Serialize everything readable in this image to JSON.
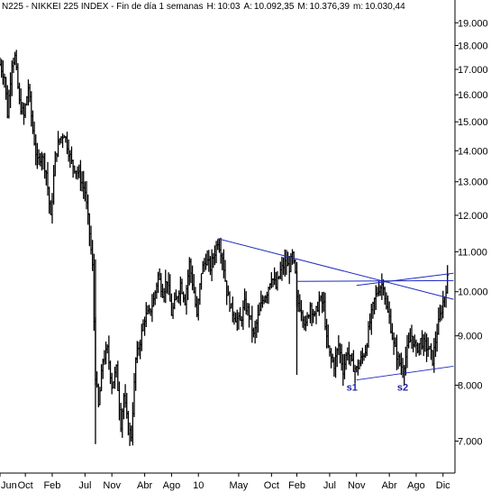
{
  "chart_data": {
    "type": "bar",
    "subtype": "ohlc-weekly",
    "title": "N225 - NIKKEI 225 INDEX - Fin de día 1 semanas",
    "stats": [
      {
        "label": "H:",
        "value": "10:03"
      },
      {
        "label": "A:",
        "value": "10.092,35"
      },
      {
        "label": "M:",
        "value": "10.376,39"
      },
      {
        "label": "m:",
        "value": "10.030,44"
      }
    ],
    "y_scale": "log",
    "ylim": [
      6500,
      19300
    ],
    "grid": false,
    "y_ticks": [
      {
        "value": 7000,
        "label": "7.000"
      },
      {
        "value": 8000,
        "label": "8.000"
      },
      {
        "value": 9000,
        "label": "9.000"
      },
      {
        "value": 10000,
        "label": "10.000"
      },
      {
        "value": 11000,
        "label": "11.000"
      },
      {
        "value": 12000,
        "label": "12.000"
      },
      {
        "value": 13000,
        "label": "13.000"
      },
      {
        "value": 14000,
        "label": "14.000"
      },
      {
        "value": 15000,
        "label": "15.000"
      },
      {
        "value": 16000,
        "label": "16.000"
      },
      {
        "value": 17000,
        "label": "17.000"
      },
      {
        "value": 18000,
        "label": "18.000"
      },
      {
        "value": 19000,
        "label": "19.000"
      }
    ],
    "x_ticks": [
      {
        "label": "Jun",
        "week": 0
      },
      {
        "label": "Oct",
        "week": 17
      },
      {
        "label": "Feb",
        "week": 35
      },
      {
        "label": "Jul",
        "week": 57
      },
      {
        "label": "Nov",
        "week": 75
      },
      {
        "label": "Abr",
        "week": 97
      },
      {
        "label": "Ago",
        "week": 115
      },
      {
        "label": "10",
        "week": 133
      },
      {
        "label": "May",
        "week": 160
      },
      {
        "label": "Oct",
        "week": 182
      },
      {
        "label": "Feb",
        "week": 199
      },
      {
        "label": "Jul",
        "week": 221
      },
      {
        "label": "Nov",
        "week": 239
      },
      {
        "label": "Abr",
        "week": 261
      },
      {
        "label": "Ago",
        "week": 279
      },
      {
        "label": "Dic",
        "week": 297
      }
    ],
    "price_path": [
      [
        0,
        17200
      ],
      [
        3,
        16700
      ],
      [
        5,
        15300
      ],
      [
        8,
        17300
      ],
      [
        10,
        17500
      ],
      [
        13,
        15700
      ],
      [
        16,
        15200
      ],
      [
        19,
        16300
      ],
      [
        22,
        14700
      ],
      [
        25,
        13600
      ],
      [
        28,
        13900
      ],
      [
        31,
        13300
      ],
      [
        34,
        11900
      ],
      [
        37,
        13800
      ],
      [
        40,
        14400
      ],
      [
        43,
        14600
      ],
      [
        45,
        14200
      ],
      [
        48,
        13600
      ],
      [
        51,
        13400
      ],
      [
        54,
        13100
      ],
      [
        57,
        12700
      ],
      [
        60,
        11500
      ],
      [
        62,
        10600
      ],
      [
        64,
        8200
      ],
      [
        66,
        7600
      ],
      [
        69,
        8500
      ],
      [
        72,
        8700
      ],
      [
        75,
        8000
      ],
      [
        78,
        8300
      ],
      [
        81,
        7300
      ],
      [
        83,
        7800
      ],
      [
        86,
        7200
      ],
      [
        88,
        7100
      ],
      [
        91,
        8500
      ],
      [
        94,
        8900
      ],
      [
        97,
        9400
      ],
      [
        100,
        9500
      ],
      [
        103,
        9800
      ],
      [
        106,
        10400
      ],
      [
        109,
        10000
      ],
      [
        112,
        10300
      ],
      [
        115,
        9500
      ],
      [
        118,
        9800
      ],
      [
        121,
        10200
      ],
      [
        124,
        9800
      ],
      [
        127,
        10700
      ],
      [
        130,
        10000
      ],
      [
        132,
        9400
      ],
      [
        135,
        10500
      ],
      [
        138,
        10800
      ],
      [
        141,
        10600
      ],
      [
        144,
        11000
      ],
      [
        146,
        11300
      ],
      [
        149,
        10900
      ],
      [
        152,
        10000
      ],
      [
        155,
        9600
      ],
      [
        158,
        9400
      ],
      [
        161,
        9300
      ],
      [
        164,
        9700
      ],
      [
        167,
        9500
      ],
      [
        170,
        9000
      ],
      [
        173,
        9400
      ],
      [
        176,
        9800
      ],
      [
        179,
        10000
      ],
      [
        182,
        10400
      ],
      [
        185,
        10100
      ],
      [
        188,
        10500
      ],
      [
        191,
        10700
      ],
      [
        194,
        10600
      ],
      [
        196,
        10900
      ],
      [
        198,
        10400
      ],
      [
        199,
        9800
      ],
      [
        202,
        9600
      ],
      [
        205,
        9200
      ],
      [
        208,
        9700
      ],
      [
        211,
        9400
      ],
      [
        214,
        9800
      ],
      [
        217,
        9700
      ],
      [
        219,
        8900
      ],
      [
        221,
        8600
      ],
      [
        224,
        8400
      ],
      [
        227,
        8800
      ],
      [
        230,
        8300
      ],
      [
        233,
        8700
      ],
      [
        236,
        8400
      ],
      [
        239,
        8300
      ],
      [
        242,
        8500
      ],
      [
        245,
        8700
      ],
      [
        248,
        9300
      ],
      [
        251,
        9800
      ],
      [
        254,
        10100
      ],
      [
        257,
        10200
      ],
      [
        259,
        9600
      ],
      [
        261,
        9400
      ],
      [
        264,
        8800
      ],
      [
        267,
        8500
      ],
      [
        270,
        8300
      ],
      [
        273,
        8700
      ],
      [
        276,
        9000
      ],
      [
        279,
        8700
      ],
      [
        282,
        8900
      ],
      [
        285,
        8800
      ],
      [
        288,
        8700
      ],
      [
        290,
        8500
      ],
      [
        293,
        9100
      ],
      [
        296,
        9600
      ],
      [
        298,
        9900
      ],
      [
        300,
        10300
      ]
    ],
    "spikes": [
      {
        "week": 64,
        "high": 10800,
        "low": 6950
      },
      {
        "week": 199,
        "high": 10500,
        "low": 8200
      }
    ],
    "trendlines": [
      {
        "from": [
          146,
          11350
        ],
        "to": [
          304,
          9820
        ]
      },
      {
        "from": [
          199,
          10250
        ],
        "to": [
          304,
          10270
        ]
      },
      {
        "from": [
          239,
          8100
        ],
        "to": [
          304,
          8370
        ]
      },
      {
        "from": [
          239,
          10150
        ],
        "to": [
          304,
          10450
        ]
      }
    ],
    "annotations": [
      {
        "label": "s1",
        "week": 236,
        "value": 7900,
        "color": "#2222aa"
      },
      {
        "label": "s2",
        "week": 270,
        "value": 7900,
        "color": "#2222aa"
      }
    ],
    "colors": {
      "price": "#000000",
      "trendline": "#1f2bbf",
      "annotation": "#2222aa",
      "axis": "#000000"
    }
  }
}
